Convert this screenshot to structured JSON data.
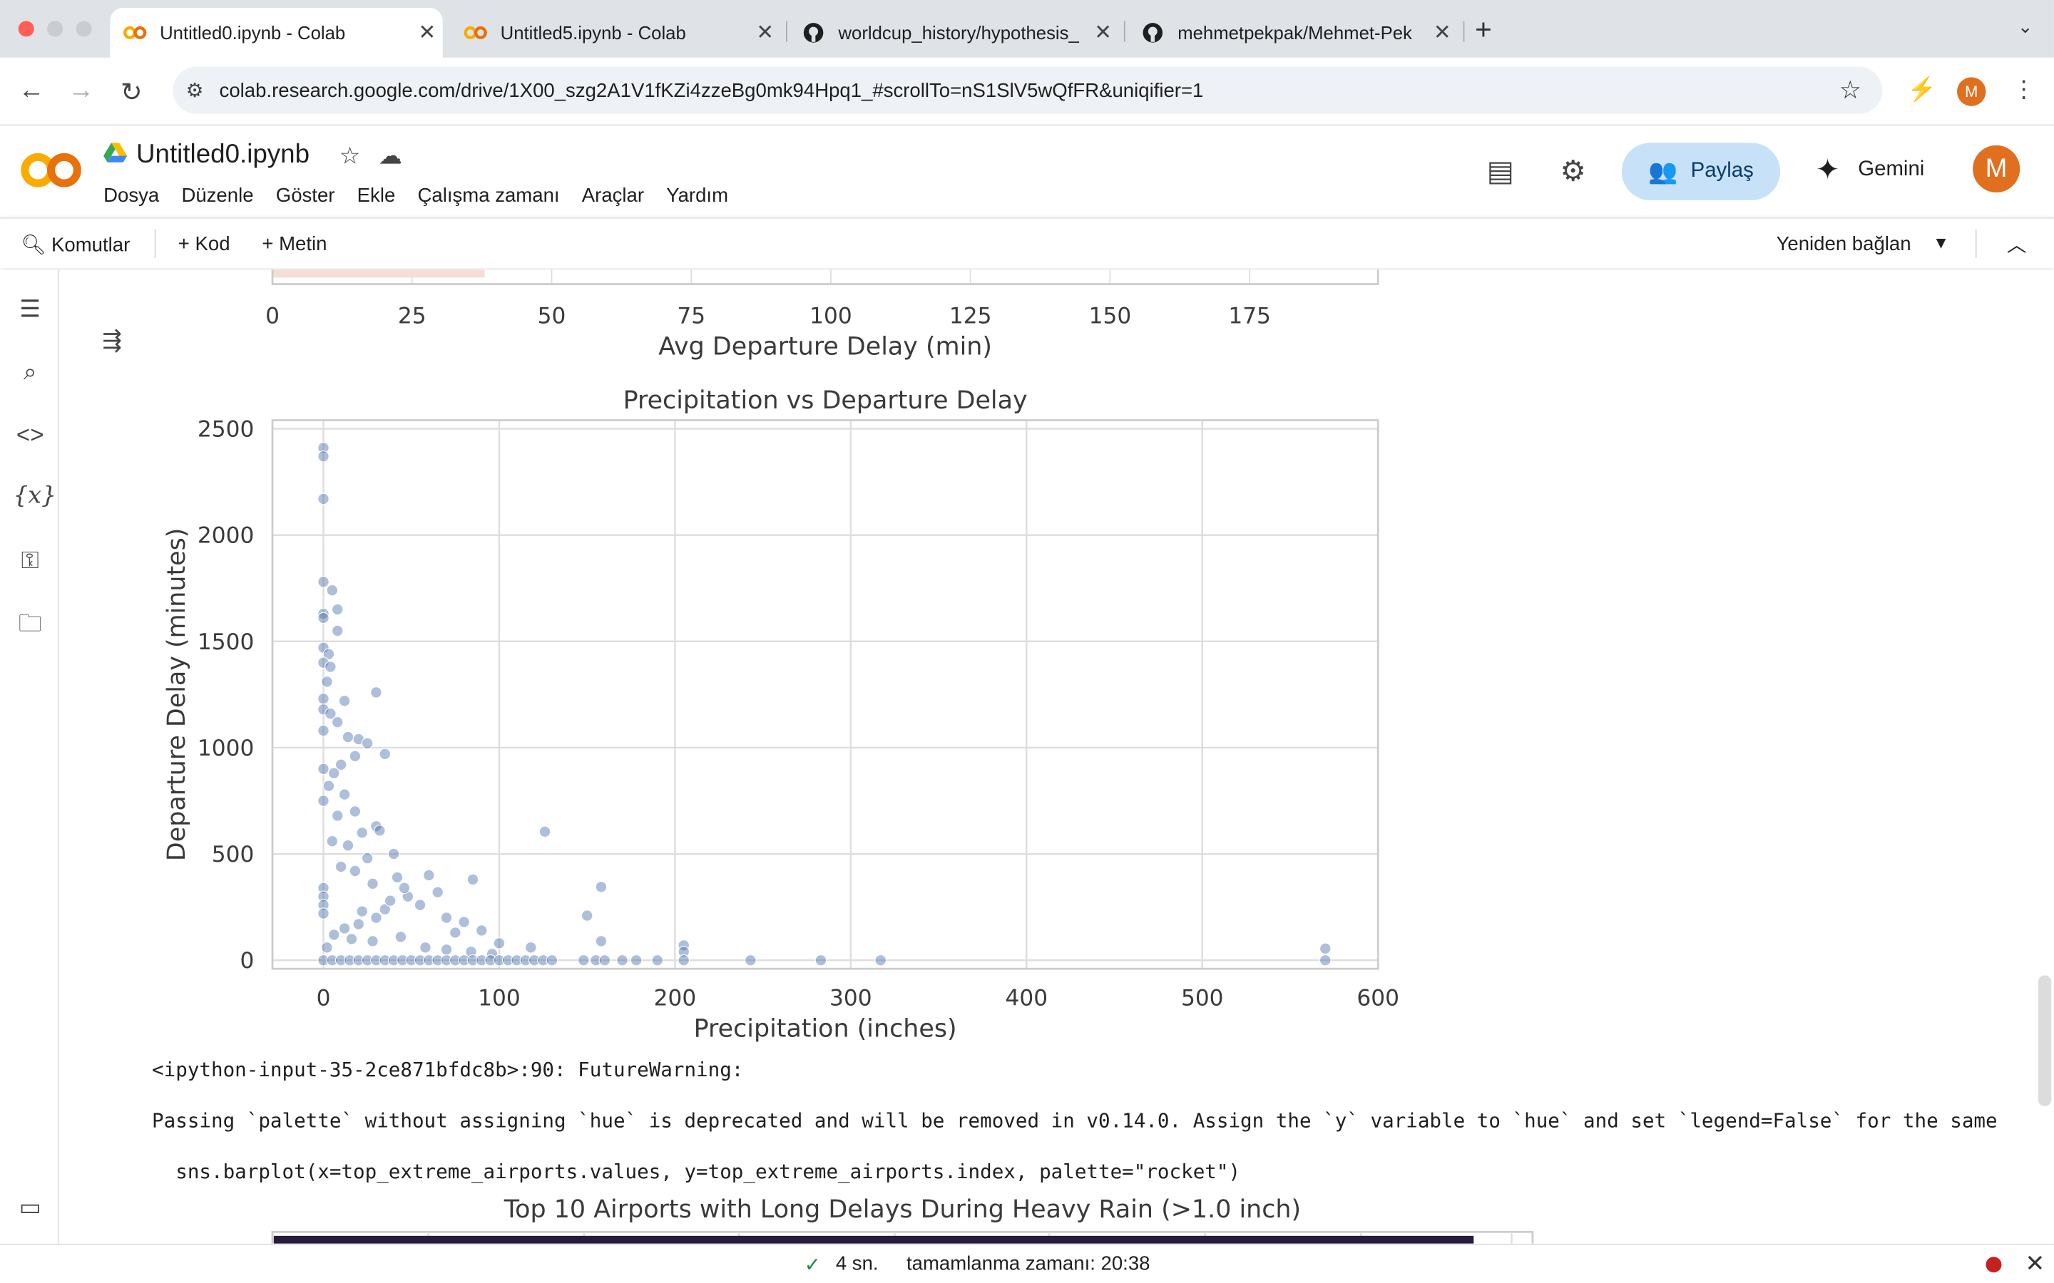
{
  "browser": {
    "tabs": [
      {
        "title": "Untitled0.ipynb - Colab",
        "icon": "colab-icon",
        "active": true
      },
      {
        "title": "Untitled5.ipynb - Colab",
        "icon": "colab-icon",
        "active": false
      },
      {
        "title": "worldcup_history/hypothesis_",
        "icon": "github-icon",
        "active": false
      },
      {
        "title": "mehmetpekpak/Mehmet-Pek",
        "icon": "github-icon",
        "active": false
      }
    ],
    "url": "colab.research.google.com/drive/1X00_szg2A1V1fKZi4zzeBg0mk94Hpq1_#scrollTo=nS1SlV5wQfFR&uniqifier=1",
    "profile_initial": "M"
  },
  "colab": {
    "notebook_title": "Untitled0.ipynb",
    "menu": [
      "Dosya",
      "Düzenle",
      "Göster",
      "Ekle",
      "Çalışma zamanı",
      "Araçlar",
      "Yardım"
    ],
    "share_label": "Paylaş",
    "gemini_label": "Gemini",
    "avatar_initial": "M",
    "toolbar": {
      "commands": "Komutlar",
      "add_code": "Kod",
      "add_text": "Metin",
      "reconnect": "Yeniden bağlan"
    },
    "accent_color": "#e8710a",
    "share_bg": "#c7e2f8"
  },
  "output": {
    "warning_line1": "<ipython-input-35-2ce871bfdc8b>:90: FutureWarning:",
    "warning_line2": "Passing `palette` without assigning `hue` is deprecated and will be removed in v0.14.0. Assign the `y` variable to `hue` and set `legend=False` for the same",
    "warning_line3": "  sns.barplot(x=top_extreme_airports.values, y=top_extreme_airports.index, palette=\"rocket\")"
  },
  "chart_data": [
    {
      "type": "bar",
      "partial": true,
      "xlabel": "Avg Departure Delay (min)",
      "xticks": [
        0,
        25,
        50,
        75,
        100,
        125,
        150,
        175
      ],
      "xlim": [
        0,
        198
      ],
      "visible_bar_value": 38
    },
    {
      "type": "scatter",
      "title": "Precipitation vs Departure Delay",
      "xlabel": "Precipitation (inches)",
      "ylabel": "Departure Delay (minutes)",
      "xlim": [
        -29,
        600
      ],
      "ylim": [
        -40,
        2540
      ],
      "xticks": [
        0,
        100,
        200,
        300,
        400,
        500,
        600
      ],
      "yticks": [
        0,
        500,
        1000,
        1500,
        2000,
        2500
      ],
      "grid": true,
      "point_color": "#4c72b0",
      "points": [
        [
          0,
          2410
        ],
        [
          0,
          2370
        ],
        [
          0,
          2170
        ],
        [
          0,
          1780
        ],
        [
          5,
          1740
        ],
        [
          8,
          1650
        ],
        [
          0,
          1630
        ],
        [
          0,
          1610
        ],
        [
          8,
          1550
        ],
        [
          0,
          1470
        ],
        [
          3,
          1440
        ],
        [
          0,
          1400
        ],
        [
          4,
          1380
        ],
        [
          2,
          1310
        ],
        [
          0,
          1230
        ],
        [
          12,
          1220
        ],
        [
          30,
          1260
        ],
        [
          0,
          1180
        ],
        [
          4,
          1160
        ],
        [
          8,
          1120
        ],
        [
          0,
          1080
        ],
        [
          14,
          1050
        ],
        [
          20,
          1040
        ],
        [
          25,
          1020
        ],
        [
          35,
          970
        ],
        [
          18,
          960
        ],
        [
          10,
          920
        ],
        [
          0,
          900
        ],
        [
          6,
          880
        ],
        [
          3,
          820
        ],
        [
          12,
          780
        ],
        [
          0,
          750
        ],
        [
          18,
          700
        ],
        [
          8,
          680
        ],
        [
          30,
          630
        ],
        [
          32,
          610
        ],
        [
          126,
          605
        ],
        [
          22,
          600
        ],
        [
          5,
          560
        ],
        [
          14,
          540
        ],
        [
          40,
          500
        ],
        [
          25,
          480
        ],
        [
          60,
          400
        ],
        [
          42,
          390
        ],
        [
          85,
          380
        ],
        [
          158,
          345
        ],
        [
          10,
          440
        ],
        [
          18,
          420
        ],
        [
          28,
          360
        ],
        [
          150,
          210
        ],
        [
          70,
          200
        ],
        [
          48,
          300
        ],
        [
          55,
          260
        ],
        [
          35,
          240
        ],
        [
          22,
          230
        ],
        [
          80,
          180
        ],
        [
          90,
          140
        ],
        [
          75,
          130
        ],
        [
          100,
          80
        ],
        [
          118,
          60
        ],
        [
          158,
          90
        ],
        [
          205,
          70
        ],
        [
          205,
          40
        ],
        [
          570,
          55
        ],
        [
          65,
          320
        ],
        [
          46,
          340
        ],
        [
          38,
          280
        ],
        [
          30,
          200
        ],
        [
          20,
          170
        ],
        [
          12,
          150
        ],
        [
          0,
          340
        ],
        [
          0,
          300
        ],
        [
          0,
          260
        ],
        [
          0,
          220
        ],
        [
          6,
          120
        ],
        [
          16,
          100
        ],
        [
          28,
          90
        ],
        [
          44,
          110
        ],
        [
          58,
          60
        ],
        [
          70,
          50
        ],
        [
          84,
          40
        ],
        [
          96,
          30
        ],
        [
          2,
          60
        ],
        [
          0,
          0
        ],
        [
          5,
          0
        ],
        [
          10,
          0
        ],
        [
          15,
          0
        ],
        [
          20,
          0
        ],
        [
          25,
          0
        ],
        [
          30,
          0
        ],
        [
          35,
          0
        ],
        [
          40,
          0
        ],
        [
          45,
          0
        ],
        [
          50,
          0
        ],
        [
          55,
          0
        ],
        [
          60,
          0
        ],
        [
          65,
          0
        ],
        [
          70,
          0
        ],
        [
          75,
          0
        ],
        [
          80,
          0
        ],
        [
          85,
          0
        ],
        [
          90,
          0
        ],
        [
          95,
          0
        ],
        [
          100,
          0
        ],
        [
          105,
          0
        ],
        [
          110,
          0
        ],
        [
          115,
          0
        ],
        [
          120,
          0
        ],
        [
          125,
          0
        ],
        [
          130,
          0
        ],
        [
          148,
          0
        ],
        [
          155,
          0
        ],
        [
          160,
          0
        ],
        [
          170,
          0
        ],
        [
          178,
          0
        ],
        [
          190,
          0
        ],
        [
          205,
          0
        ],
        [
          243,
          0
        ],
        [
          283,
          0
        ],
        [
          317,
          0
        ],
        [
          570,
          0
        ]
      ]
    },
    {
      "type": "bar",
      "partial": true,
      "title": "Top 10 Airports with Long Delays During Heavy Rain (>1.0 inch)"
    }
  ]
}
